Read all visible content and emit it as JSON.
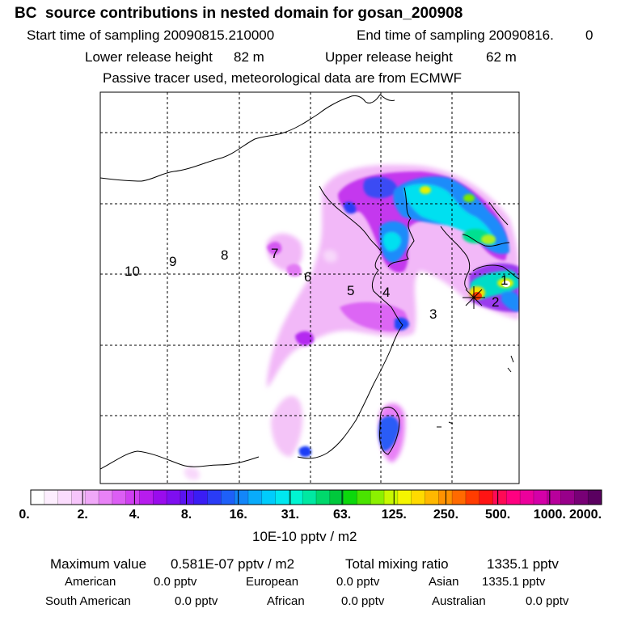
{
  "title": "BC  source contributions in nested domain for gosan_200908",
  "header": {
    "start_label": "Start time of sampling 20090815.210000",
    "end_label": "End time of sampling 20090816.",
    "end_value": "0",
    "lower_label": "Lower release height",
    "lower_value": "82 m",
    "upper_label": "Upper release height",
    "upper_value": "62 m",
    "tracer_note": "Passive tracer used, meteorological data are from ECMWF"
  },
  "map": {
    "region_labels": [
      "1",
      "2",
      "3",
      "4",
      "5",
      "6",
      "7",
      "8",
      "9",
      "10"
    ],
    "receptor_marker": "star-marker"
  },
  "colorbar": {
    "tick_labels": [
      "0.",
      "2.",
      "4.",
      "8.",
      "16.",
      "31.",
      "63.",
      "125.",
      "250.",
      "500.",
      "1000.",
      "2000."
    ],
    "unit_label": "10E-10 pptv / m2",
    "colors": [
      "#ffffff",
      "#fdeefe",
      "#fbdcfd",
      "#f7c5fb",
      "#f0a8f8",
      "#e882f6",
      "#dc5ef4",
      "#cf3ff1",
      "#b71cee",
      "#9a0ced",
      "#7e0ef0",
      "#5a14f2",
      "#3a1df4",
      "#2a3cf6",
      "#1e60f8",
      "#1386fa",
      "#09abfb",
      "#00ccfc",
      "#00e8f0",
      "#00f5d2",
      "#00e8a2",
      "#00d86c",
      "#00c83c",
      "#0cd80c",
      "#4ae400",
      "#8cf000",
      "#c8f800",
      "#f5f500",
      "#ffda00",
      "#ffb800",
      "#ff9200",
      "#ff6a00",
      "#ff3c00",
      "#ff1414",
      "#ff0a55",
      "#ff0080",
      "#ec009c",
      "#d400a8",
      "#b8009c",
      "#98008a",
      "#780076",
      "#5a0060"
    ]
  },
  "stats": {
    "max_label": "Maximum value",
    "max_value": "0.581E-07 pptv / m2",
    "total_label": "Total mixing ratio",
    "total_value": "1335.1 pptv",
    "regions": [
      {
        "name": "American",
        "value": "0.0 pptv"
      },
      {
        "name": "European",
        "value": "0.0 pptv"
      },
      {
        "name": "Asian",
        "value": "1335.1 pptv"
      },
      {
        "name": "South American",
        "value": "0.0 pptv"
      },
      {
        "name": "African",
        "value": "0.0 pptv"
      },
      {
        "name": "Australian",
        "value": "0.0 pptv"
      }
    ]
  }
}
